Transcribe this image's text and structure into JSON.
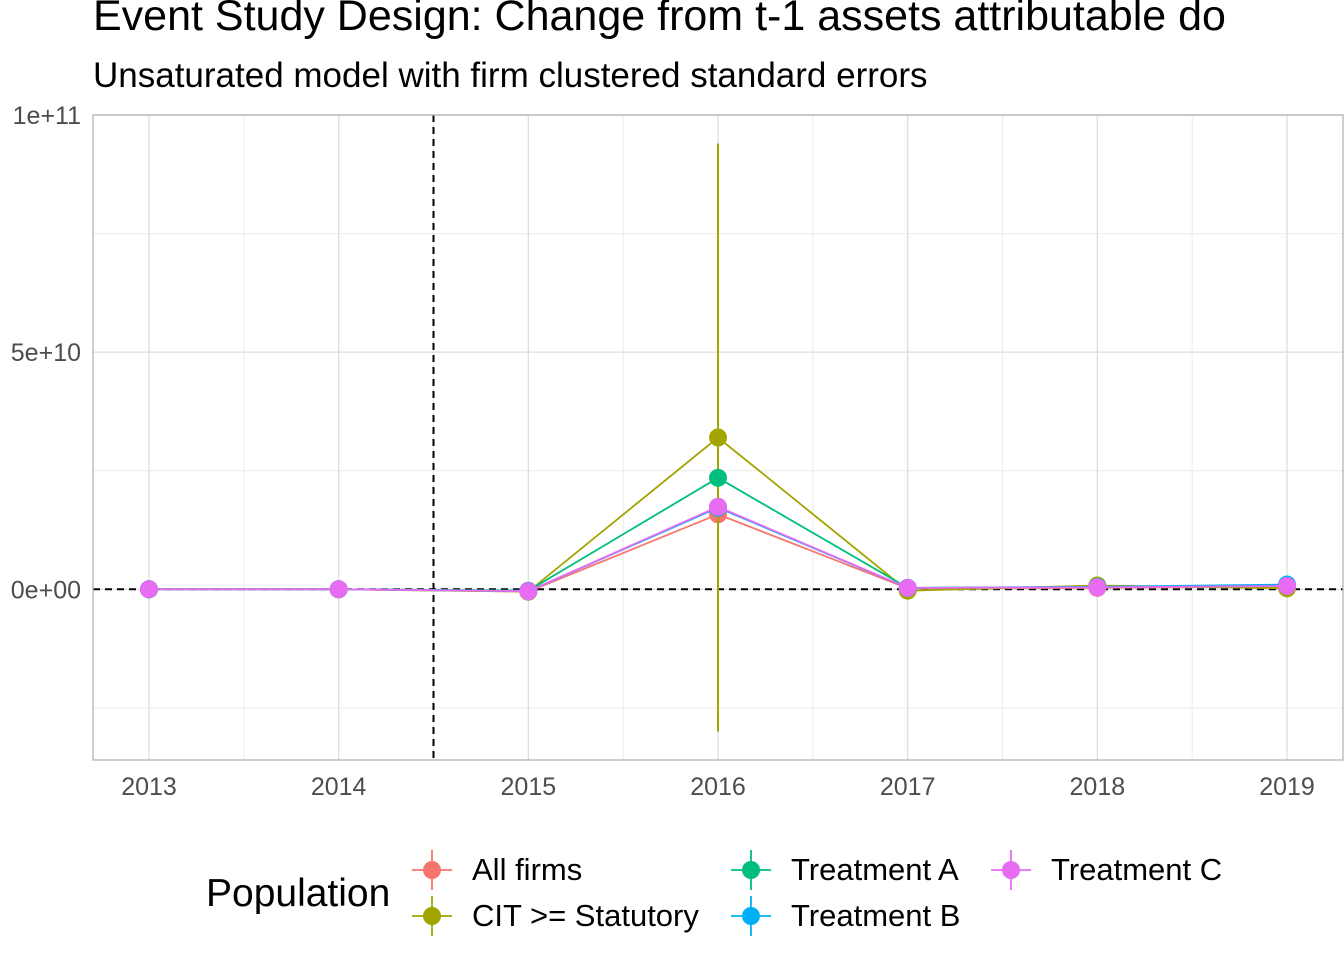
{
  "chart_data": {
    "type": "line",
    "title": "Event Study Design: Change from t-1 assets attributable do",
    "subtitle": "Unsaturated model with firm clustered standard errors",
    "categories": [
      "2013",
      "2014",
      "2015",
      "2016",
      "2017",
      "2018",
      "2019"
    ],
    "ylim": [
      -36000000000,
      100000000000
    ],
    "yticks": [
      0,
      50000000000,
      100000000000
    ],
    "ytick_labels": [
      "0e+00",
      "5e+10",
      "1e+11"
    ],
    "reference_lines": {
      "x_between": [
        "2014",
        "2015"
      ],
      "y": 0
    },
    "grid": true,
    "legend_position": "bottom",
    "legend_title": "Population",
    "series": [
      {
        "name": "All firms",
        "color": "#F8766D",
        "values": [
          0,
          0,
          -500000000,
          15800000000,
          200000000,
          300000000,
          600000000
        ],
        "ci": [
          null,
          null,
          null,
          null,
          null,
          null,
          null
        ]
      },
      {
        "name": "CIT >= Statutory",
        "color": "#A3A500",
        "values": [
          0,
          0,
          -500000000,
          32000000000,
          -300000000,
          800000000,
          200000000
        ],
        "ci": [
          null,
          null,
          null,
          [
            -30000000000,
            94000000000
          ],
          null,
          null,
          null
        ]
      },
      {
        "name": "Treatment A",
        "color": "#00BF7D",
        "values": [
          0,
          0,
          -300000000,
          23500000000,
          300000000,
          500000000,
          800000000
        ],
        "ci": [
          null,
          null,
          null,
          null,
          null,
          null,
          null
        ]
      },
      {
        "name": "Treatment B",
        "color": "#00B0F6",
        "values": [
          0,
          0,
          -400000000,
          17200000000,
          300000000,
          500000000,
          1000000000
        ],
        "ci": [
          null,
          null,
          null,
          null,
          null,
          null,
          null
        ]
      },
      {
        "name": "Treatment C",
        "color": "#E76BF3",
        "values": [
          0,
          0,
          -400000000,
          17400000000,
          300000000,
          400000000,
          700000000
        ],
        "ci": [
          null,
          null,
          null,
          null,
          null,
          null,
          null
        ]
      }
    ]
  }
}
